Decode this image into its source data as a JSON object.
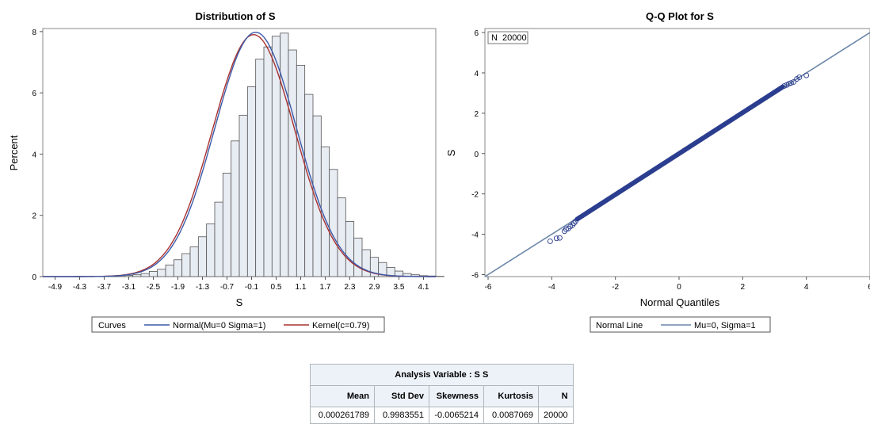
{
  "chart_data": [
    {
      "type": "bar",
      "title": "Distribution of S",
      "xlabel": "S",
      "ylabel": "Percent",
      "xlim": [
        -5.2,
        4.4
      ],
      "ylim": [
        0,
        8.1
      ],
      "xticks": [
        "-4.9",
        "-4.3",
        "-3.7",
        "-3.1",
        "-2.5",
        "-1.9",
        "-1.3",
        "-0.7",
        "-0.1",
        "0.5",
        "1.1",
        "1.7",
        "2.3",
        "2.9",
        "3.5",
        "4.1"
      ],
      "yticks": [
        "0",
        "2",
        "4",
        "6",
        "8"
      ],
      "bin_width": 0.2,
      "bin_start": -4.4,
      "values": [
        0.01,
        0.01,
        0.01,
        0.01,
        0.02,
        0.03,
        0.04,
        0.06,
        0.1,
        0.17,
        0.24,
        0.38,
        0.55,
        0.75,
        0.97,
        1.3,
        1.72,
        2.43,
        3.38,
        4.43,
        5.27,
        6.2,
        7.1,
        7.5,
        7.85,
        7.95,
        7.4,
        6.9,
        5.95,
        5.25,
        4.24,
        3.5,
        2.57,
        1.8,
        1.26,
        0.88,
        0.63,
        0.46,
        0.3,
        0.18,
        0.1,
        0.06,
        0.03,
        0.02,
        0.01
      ],
      "series": [
        {
          "name": "Normal(Mu=0 Sigma=1)",
          "kind": "normal",
          "mu": 0,
          "sigma": 1,
          "color": "#3d5aa8"
        },
        {
          "name": "Kernel(c=0.79)",
          "kind": "kernel",
          "c": 0.79,
          "color": "#a83232"
        }
      ],
      "legend": {
        "title": "Curves",
        "position": "bottom"
      }
    },
    {
      "type": "scatter",
      "title": "Q-Q Plot for S",
      "xlabel": "Normal Quantiles",
      "ylabel": "S",
      "xlim": [
        -6.1,
        6.0
      ],
      "ylim": [
        -6.1,
        6.2
      ],
      "xticks": [
        "-6",
        "-4",
        "-2",
        "0",
        "2",
        "4",
        "6"
      ],
      "yticks": [
        "-6",
        "-4",
        "-2",
        "0",
        "2",
        "4",
        "6"
      ],
      "inset": "N  20000",
      "reference_line": {
        "name": "Mu=0, Sigma=1",
        "intercept": 0,
        "slope": 1,
        "color": "#6b86a8"
      },
      "points": [
        [
          -4.05,
          -4.35
        ],
        [
          -3.85,
          -4.2
        ],
        [
          -3.75,
          -4.18
        ],
        [
          -3.6,
          -3.85
        ],
        [
          -3.55,
          -3.75
        ],
        [
          -3.48,
          -3.72
        ],
        [
          -3.42,
          -3.62
        ],
        [
          -3.35,
          -3.55
        ],
        [
          -3.3,
          -3.45
        ],
        [
          -3.25,
          -3.35
        ],
        [
          3.3,
          3.35
        ],
        [
          3.38,
          3.4
        ],
        [
          3.45,
          3.46
        ],
        [
          3.52,
          3.5
        ],
        [
          3.6,
          3.55
        ],
        [
          3.7,
          3.7
        ],
        [
          3.78,
          3.78
        ],
        [
          4.0,
          3.88
        ]
      ],
      "band": [
        [
          -3.2,
          -3.25
        ],
        [
          3.25,
          3.3
        ]
      ],
      "legend": {
        "title": "Normal Line",
        "position": "bottom"
      }
    }
  ],
  "stats_table": {
    "caption": "Analysis Variable : S S",
    "headers": [
      "Mean",
      "Std Dev",
      "Skewness",
      "Kurtosis",
      "N"
    ],
    "values": [
      "0.000261789",
      "0.9983551",
      "-0.0065214",
      "0.0087069",
      "20000"
    ]
  },
  "colors": {
    "bar_fill": "#e8ecf3",
    "bar_stroke": "#555555",
    "marker": "#2a3d8f",
    "frame": "#888888"
  }
}
